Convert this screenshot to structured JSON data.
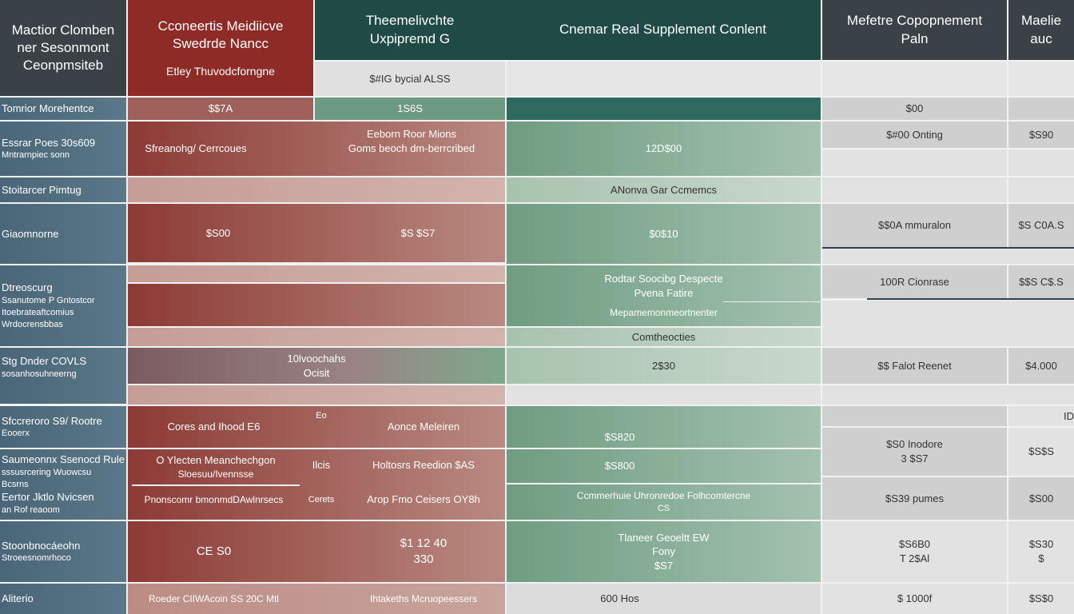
{
  "header": {
    "col0": [
      "Mactior Clomben",
      "ner Sesonmont",
      "Ceonpmsiteb"
    ],
    "col1": [
      "Cconeertis Meidiicve",
      "Swedrde Nancc"
    ],
    "col1_sub": "Etley Thuvodcforngne",
    "col2": [
      "Theemelivchte",
      "Uxpipremd G"
    ],
    "col2_sub": "$#IG bycial ALSS",
    "col3": "Cnemar Real Supplement Conlent",
    "col4": [
      "Mefetre Copopnement",
      "Paln"
    ],
    "col5": "Maelie auc"
  },
  "rows": [
    {
      "label": [
        "Tomrior Morehentce"
      ],
      "c1": "$$7A",
      "c2": "1S6S",
      "c4": "$00"
    },
    {
      "label": [
        "Essrar Poes 30s609",
        "Mntrarnpiec sonn"
      ],
      "c1": "Sfreanohg/ Cerrcoues",
      "c1b": [
        "Eeborn Roor Mions",
        "Goms beoch dm-berrcribed"
      ],
      "c3": "12D$00",
      "c4": "$#00 Onting",
      "c5": "$S90"
    },
    {
      "label": [
        "Stoitarcer Pimtug"
      ],
      "c3": "ANonva Gar Ccmemcs"
    },
    {
      "label": [
        "Giaomnorne"
      ],
      "c1": "$S00",
      "c1b": "$S $S7",
      "c3": "$0$10",
      "c4": "$$0A mmuralon",
      "c5": "$S C0A.S"
    },
    {
      "label": [
        "Dtreoscurg",
        "Ssanutome P Gntostcor",
        "Itoebrateaftcomius",
        "Wrdocrensbbas"
      ],
      "c3": [
        "Rodtar Soocibg Despecte",
        "Pvena Fatire"
      ],
      "c3b": "Mepamemonmeortnenter",
      "c3c": "Comtheocties",
      "c4": "100R Cionrase",
      "c5": "$$S C$.S"
    },
    {
      "label": [
        "Stg Dnder COVLS",
        "sosanhosuhneerng"
      ],
      "c1": [
        "10lvoochahs",
        "Ocisit"
      ],
      "c3": "2$30",
      "c4": "$$ Falot Reenet",
      "c5": "$4.000"
    },
    {
      "label": [
        "Sfccreroro S9/ Rootre",
        "Eooerx"
      ],
      "c1": "Cores and Ihood E6",
      "c1m": "Eo",
      "c1b": "Aonce Meleiren",
      "c3": "$S820",
      "c4": [
        "$S0 Inodore",
        "3 $S7"
      ],
      "c5": "$S$S",
      "c5b": "ID"
    },
    {
      "label": [
        "Saumeonnx Ssenocd Rule",
        "sssusrcering Wuowcsu",
        "Bcsrns",
        "Eertor Jktlo Nvicsen",
        "an Rof reaoom"
      ],
      "c1": [
        "O Ylecten Meanchechgon",
        "Sloesuu/Ivennsse"
      ],
      "c1m": "Ilcis",
      "c1b": "Holtosrs Reedion $AS",
      "c1c": "Pnonscomr bmonmdDAwlnrsecs",
      "c1cm": "Cerets",
      "c1cb": "Arop Fmo Ceisers OY8h",
      "c3": "$S800",
      "c3b": [
        "Ccmmerhuie Uhronredoe Folhcomtercne",
        "CS"
      ],
      "c4": "$S39 pumes",
      "c5": "$S00"
    },
    {
      "label": [
        "Stoonbnocáeohn",
        "Stroeesnomrhoco"
      ],
      "c1": "CE S0",
      "c1b": [
        "$1 12 40",
        "330"
      ],
      "c3": [
        "Tlaneer Geoeltt EW",
        "Fony",
        "$S7"
      ],
      "c4": [
        "$S6B0",
        "T 2$Al"
      ],
      "c5": [
        "$S30",
        "$"
      ]
    },
    {
      "label": [
        "Aliterio"
      ],
      "c1": "Roeder CIIWAcoin SS 20C Mtl",
      "c1b": "Ihtakeths Mcruopeessers",
      "c3": "600 Hos",
      "c4": "$ 1000f",
      "c5": "$S$0"
    }
  ],
  "colors": {
    "header_dark": "#3a4248",
    "header_red": "#8e2b27",
    "header_teal": "#1f4a45",
    "row_blue": "#4f6b7e",
    "body_red": "#9c5a56",
    "body_green": "#7ea88c",
    "body_grey": "#cfcfcf"
  }
}
